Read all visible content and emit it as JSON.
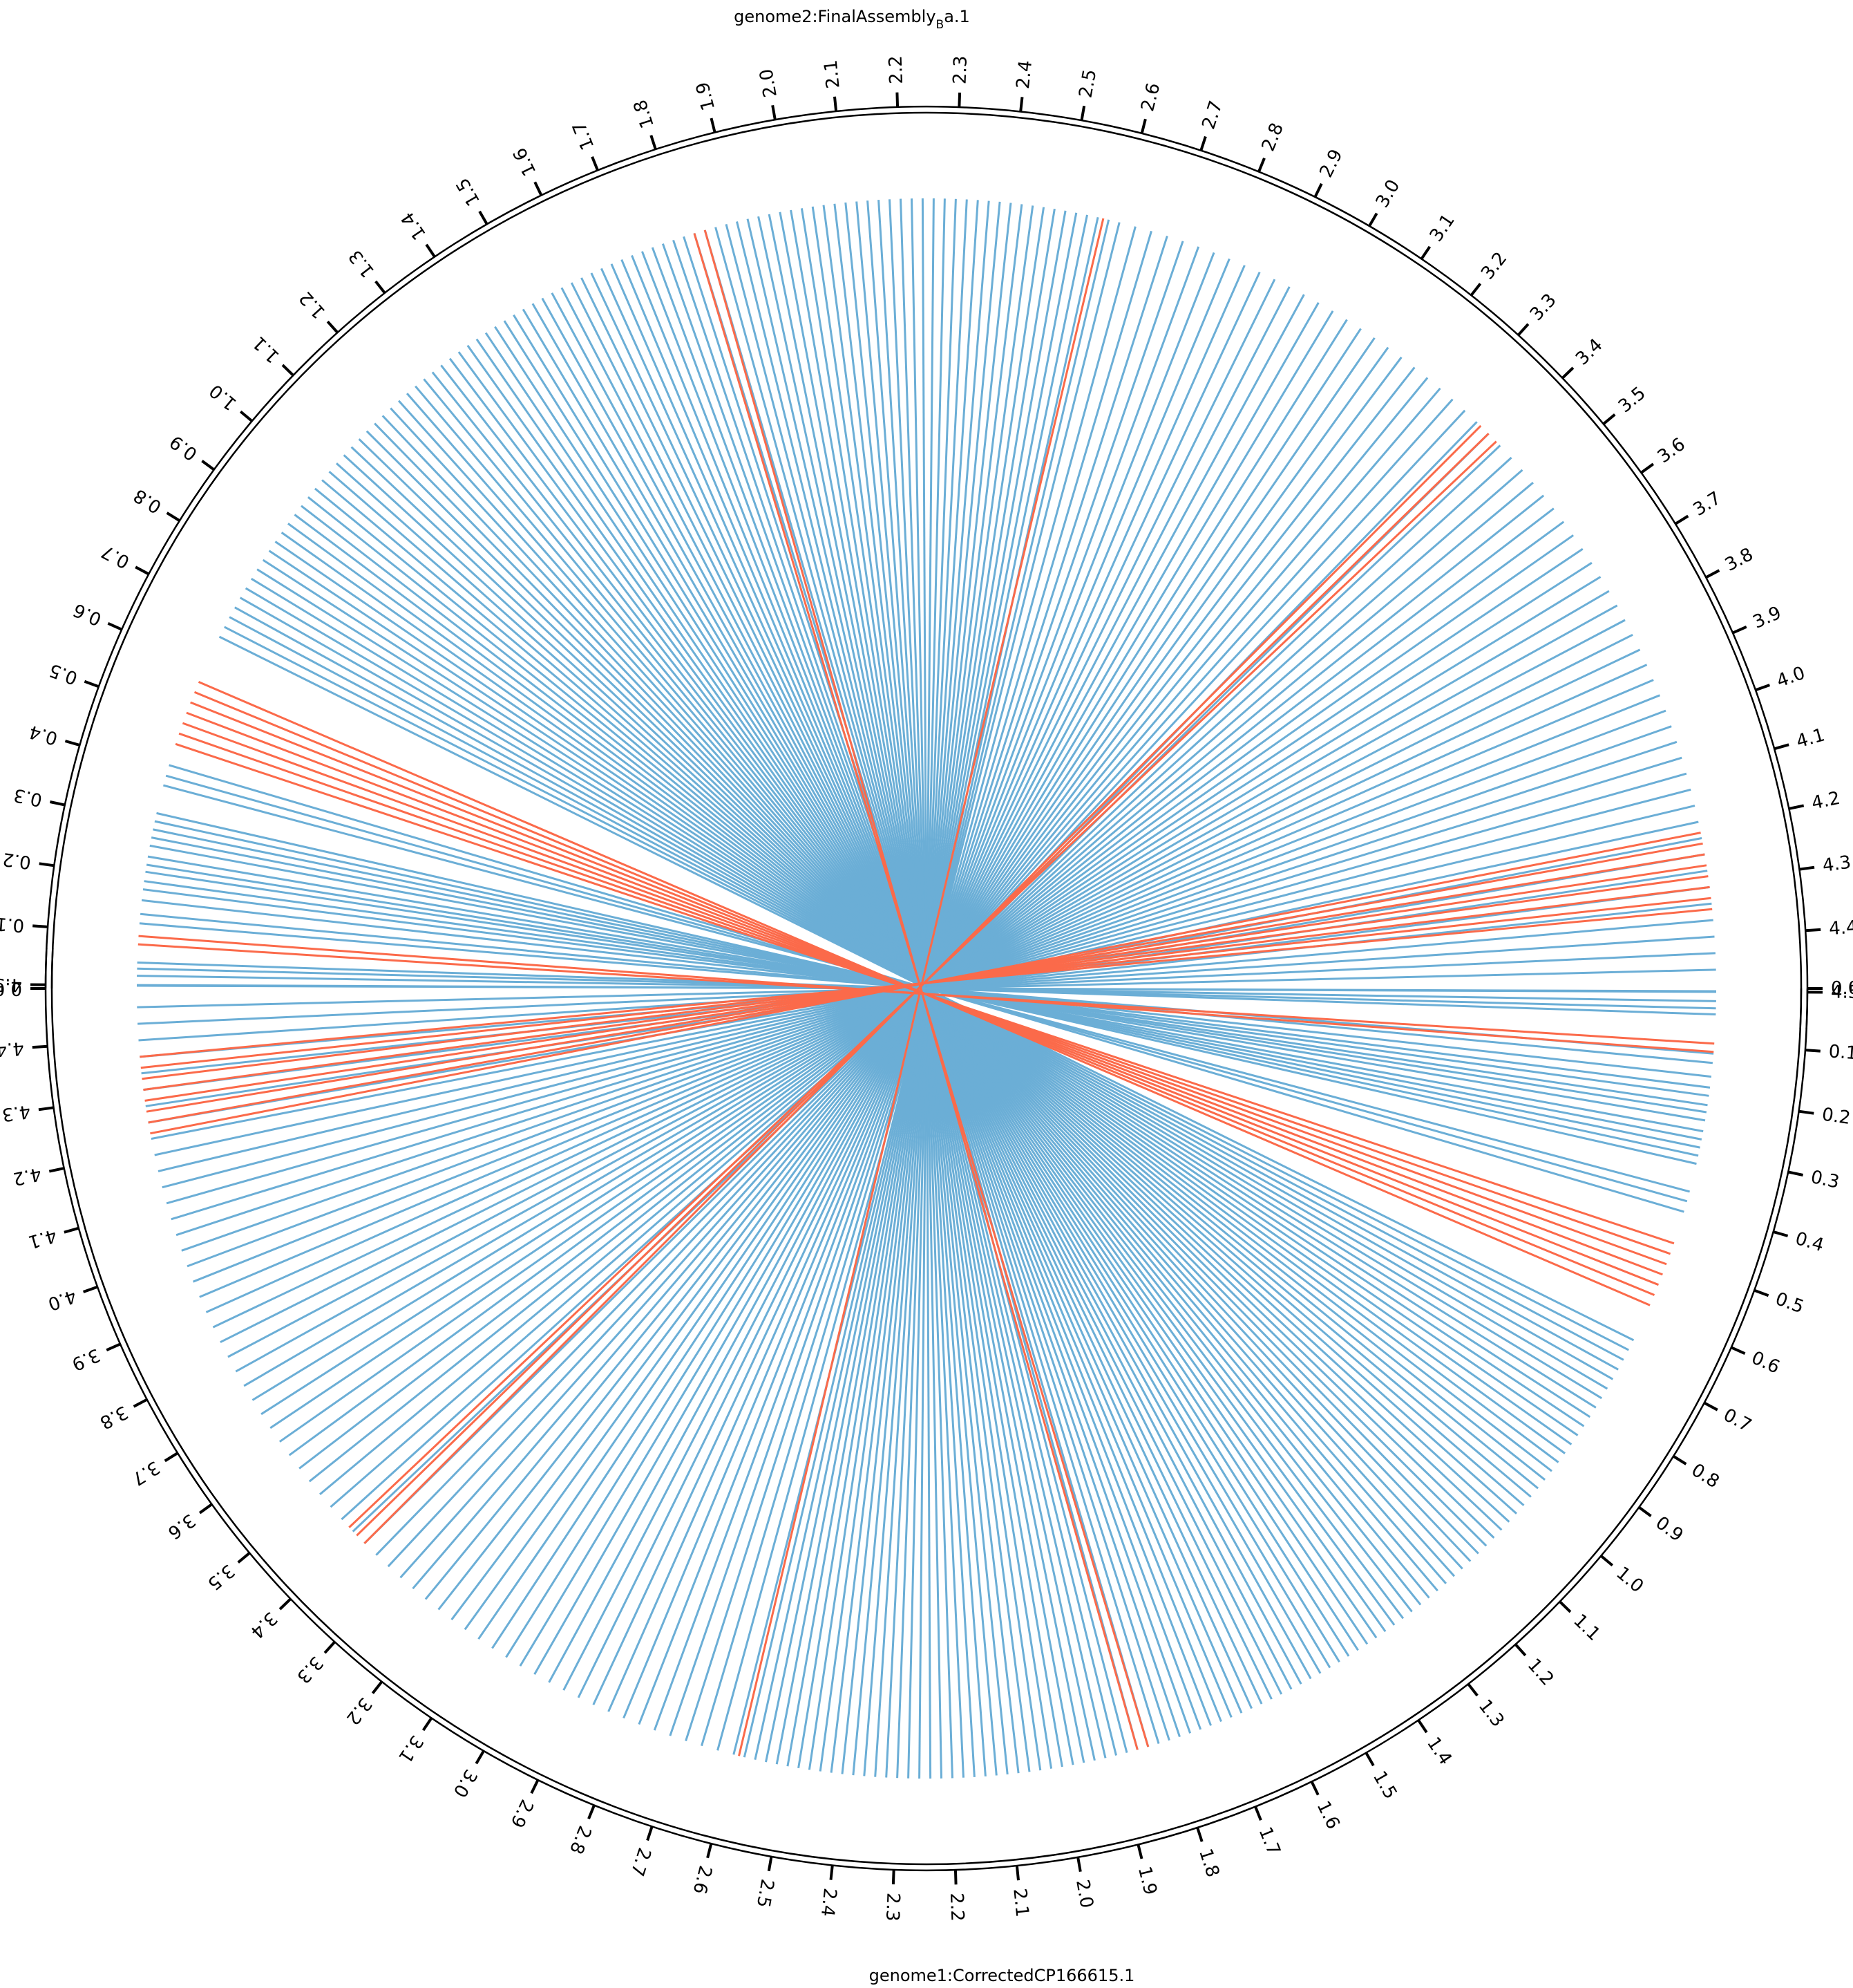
{
  "chart_data": {
    "type": "circos-synteny",
    "genome2": {
      "name_prefix": "genome2:FinalAssembly",
      "name_sub": "B",
      "name_suffix": "a.1",
      "ticks": [
        "0.0",
        "0.1",
        "0.2",
        "0.3",
        "0.4",
        "0.5",
        "0.6",
        "0.7",
        "0.8",
        "0.9",
        "1.0",
        "1.1",
        "1.2",
        "1.3",
        "1.4",
        "1.5",
        "1.6",
        "1.7",
        "1.8",
        "1.9",
        "2.0",
        "2.1",
        "2.2",
        "2.3",
        "2.4",
        "2.5",
        "2.6",
        "2.7",
        "2.8",
        "2.9",
        "3.0",
        "3.1",
        "3.2",
        "3.3",
        "3.4",
        "3.5",
        "3.6",
        "3.7",
        "3.8",
        "3.9",
        "4.0",
        "4.1",
        "4.2",
        "4.3",
        "4.4",
        "4.5"
      ]
    },
    "genome1": {
      "name": "genome1:CorrectedCP166615.1",
      "ticks": [
        "0.0",
        "0.1",
        "0.2",
        "0.3",
        "0.4",
        "0.5",
        "0.6",
        "0.7",
        "0.8",
        "0.9",
        "1.0",
        "1.1",
        "1.2",
        "1.3",
        "1.4",
        "1.5",
        "1.6",
        "1.7",
        "1.8",
        "1.9",
        "2.0",
        "2.1",
        "2.2",
        "2.3",
        "2.4",
        "2.5",
        "2.6",
        "2.7",
        "2.8",
        "2.9",
        "3.0",
        "3.1",
        "3.2",
        "3.3",
        "3.4",
        "3.5",
        "3.6",
        "3.7",
        "3.8",
        "3.9",
        "4.0",
        "4.1",
        "4.2",
        "4.3",
        "4.4",
        "4.5"
      ]
    },
    "links": {
      "forward": [
        0.005,
        0.023,
        0.047,
        0.118,
        0.135,
        0.16,
        0.18,
        0.195,
        0.212,
        0.225,
        0.24,
        0.26,
        0.275,
        0.29,
        0.305,
        0.32,
        0.372,
        0.39,
        0.41,
        0.66,
        0.68,
        0.7,
        0.72,
        0.74,
        0.76,
        0.78,
        0.8,
        0.82,
        0.84,
        0.86,
        0.88,
        0.9,
        0.92,
        0.94,
        0.96,
        0.98,
        1.0,
        1.02,
        1.04,
        1.06,
        1.08,
        1.1,
        1.12,
        1.14,
        1.16,
        1.18,
        1.2,
        1.22,
        1.24,
        1.26,
        1.28,
        1.3,
        1.32,
        1.34,
        1.36,
        1.38,
        1.4,
        1.42,
        1.44,
        1.46,
        1.48,
        1.5,
        1.52,
        1.54,
        1.56,
        1.58,
        1.6,
        1.62,
        1.64,
        1.66,
        1.68,
        1.7,
        1.72,
        1.74,
        1.76,
        1.78,
        1.8,
        1.82,
        1.84,
        1.86,
        1.88,
        1.9,
        1.92,
        1.94,
        1.96,
        1.98,
        2.0,
        2.02,
        2.04,
        2.06,
        2.08,
        2.1,
        2.12,
        2.14,
        2.16,
        2.18,
        2.2,
        2.22,
        2.24,
        2.26,
        2.28,
        2.3,
        2.32,
        2.34,
        2.36,
        2.38,
        2.4,
        2.42,
        2.44,
        2.46,
        2.48,
        2.5,
        2.52,
        2.54,
        2.56,
        2.58,
        2.6,
        2.63,
        2.66,
        2.69,
        2.72,
        2.75,
        2.78,
        2.81,
        2.84,
        2.87,
        2.9,
        2.93,
        2.96,
        2.99,
        3.02,
        3.05,
        3.08,
        3.11,
        3.14,
        3.17,
        3.2,
        3.23,
        3.26,
        3.29,
        3.32,
        3.35,
        3.38,
        3.41,
        3.44,
        3.47,
        3.5,
        3.53,
        3.56,
        3.59,
        3.62,
        3.65,
        3.68,
        3.71,
        3.74,
        3.77,
        3.8,
        3.83,
        3.86,
        3.89,
        3.92,
        3.95,
        3.98,
        4.01,
        4.04,
        4.07,
        4.1,
        4.13,
        4.16,
        4.19,
        4.22,
        4.25,
        4.28,
        4.31,
        4.34,
        4.37,
        4.4,
        4.43,
        4.46,
        4.5,
        4.53
      ],
      "inverted": [
        0.08,
        0.095,
        0.45,
        0.47,
        0.49,
        0.51,
        0.53,
        0.55,
        0.57,
        1.82,
        1.84,
        2.57,
        3.36,
        3.38,
        3.4,
        4.21,
        4.23,
        4.25,
        4.27,
        4.29,
        4.31,
        4.33,
        4.35
      ]
    },
    "colors": {
      "forward": "#6baed6",
      "inverted": "#fb6a4a",
      "axis": "#000000"
    }
  }
}
